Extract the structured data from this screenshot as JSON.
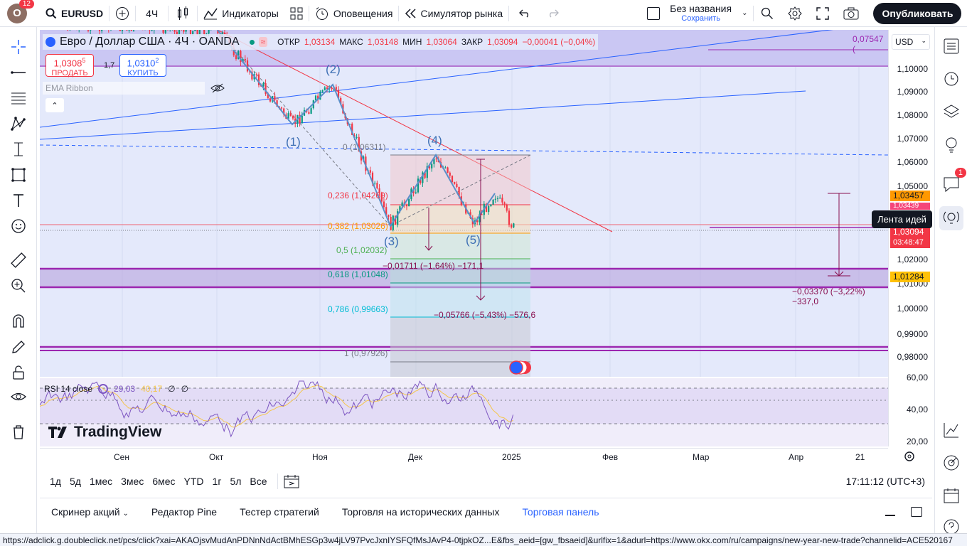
{
  "topbar": {
    "avatar_letter": "O",
    "avatar_notifications": "12",
    "symbol": "EURUSD",
    "interval": "4Ч",
    "indicators": "Индикаторы",
    "alerts": "Оповещения",
    "replay": "Симулятор рынка",
    "layout_name": "Без названия",
    "layout_status": "Сохранить",
    "publish": "Опубликовать"
  },
  "legend": {
    "title": "Евро / Доллар США · 4Ч · OANDA",
    "open_label": "ОТКР",
    "open": "1,03134",
    "high_label": "МАКС",
    "high": "1,03148",
    "low_label": "МИН",
    "low": "1,03064",
    "close_label": "ЗАКР",
    "close": "1,03094",
    "change": "−0,00041 (−0,04%)",
    "sell_price_main": "1,0308",
    "sell_price_frac": "5",
    "sell_label": "ПРОДАТЬ",
    "spread": "1,7",
    "buy_price_main": "1,0310",
    "buy_price_frac": "2",
    "buy_label": "КУПИТЬ",
    "indicator": "EMA Ribbon"
  },
  "currency": "USD",
  "top_value": "0,07547 (",
  "price_axis": {
    "labels": [
      "1,10000",
      "1,09000",
      "1,08000",
      "1,07000",
      "1,06000",
      "1,05000",
      "1,02000",
      "1,01000",
      "1,00000",
      "0,99000",
      "0,98000"
    ],
    "tag_orange": "1,03457",
    "tag_pink": "1,03439",
    "tag_current": "1,03094",
    "tag_timer": "03:48:47",
    "tag_yellow": "1,01284",
    "rsi_labels": [
      "60,00",
      "40,00",
      "20,00"
    ]
  },
  "elliott": [
    "(1)",
    "(2)",
    "(3)",
    "(4)",
    "(5)"
  ],
  "fib": [
    {
      "label": "0 (1,06311)",
      "color": "#787b86"
    },
    {
      "label": "0,236 (1,04269)",
      "color": "#f23645"
    },
    {
      "label": "0,382 (1,03026)",
      "color": "#ff9800"
    },
    {
      "label": "0,5 (1,02032)",
      "color": "#4caf50"
    },
    {
      "label": "0,618 (1,01048)",
      "color": "#089981"
    },
    {
      "label": "0,786 (0,99663)",
      "color": "#00bcd4"
    },
    {
      "label": "1 (0,97926)",
      "color": "#787b86"
    }
  ],
  "measure1": "−0,01711 (−1,64%) −171,1",
  "measure2": "−0,05766 (−5,43%) −576,6",
  "measure3": "−0,03370 (−3,22%) −337,0",
  "rsi": {
    "title": "RSI 14 close",
    "value1": "29,03",
    "value2": "40,17",
    "ext1": "∅",
    "ext2": "∅"
  },
  "watermark": "TradingView",
  "time_axis": [
    "Сен",
    "Окт",
    "Ноя",
    "Дек",
    "2025",
    "Фев",
    "Мар",
    "Апр",
    "21"
  ],
  "ranges": [
    "1д",
    "5д",
    "1мес",
    "3мес",
    "6мес",
    "YTD",
    "1г",
    "5л",
    "Все"
  ],
  "clock": "17:11:12 (UTC+3)",
  "bottom_tabs": [
    "Скринер акций",
    "Редактор Pine",
    "Тестер стратегий",
    "Торговля на исторических данных",
    "Торговая панель"
  ],
  "tooltip": "Лента идей",
  "right_notif": "1",
  "status_url": "https://adclick.g.doubleclick.net/pcs/click?xai=AKAOjsvMudAnPDNnNdActBMhESGp3w4jLV97PvcJxnIYSFQfMsJAvP4-0tjpkOZ...E&fbs_aeid=[gw_fbsaeid]&urlfix=1&adurl=https://www.okx.com/ru/campaigns/new-year-new-trade?channelid=ACE520167",
  "colors": {
    "accent": "#2962ff",
    "down": "#f23645",
    "up": "#089981",
    "wave": "#5b8fc9"
  }
}
